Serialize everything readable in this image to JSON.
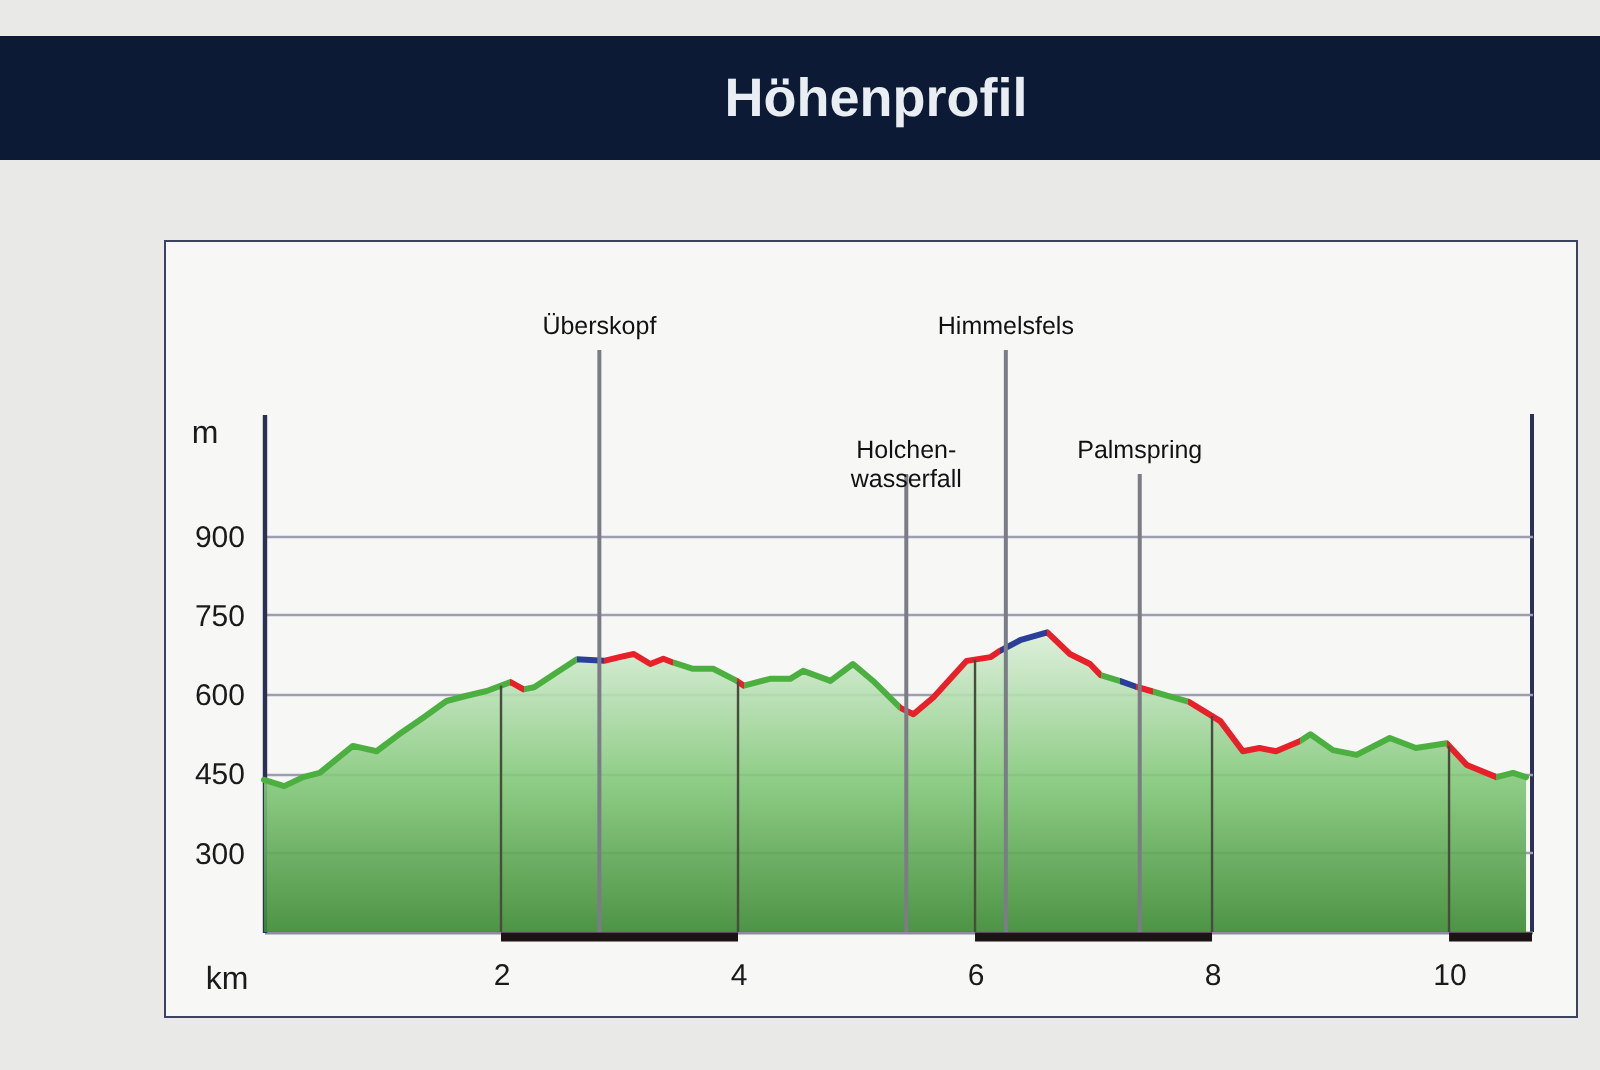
{
  "chart_data": {
    "type": "area",
    "title": "Höhenprofil",
    "xlabel": "km",
    "ylabel": "m",
    "x": [
      0,
      0.17,
      0.33,
      0.47,
      0.75,
      0.95,
      1.14,
      1.34,
      1.54,
      1.71,
      1.88,
      2.08,
      2.19,
      2.28,
      2.45,
      2.64,
      2.87,
      3.0,
      3.12,
      3.26,
      3.37,
      3.45,
      3.62,
      3.79,
      3.99,
      4.05,
      4.27,
      4.44,
      4.55,
      4.78,
      4.97,
      5.14,
      5.37,
      5.48,
      5.65,
      5.93,
      6.13,
      6.21,
      6.38,
      6.61,
      6.8,
      6.97,
      7.06,
      7.22,
      7.36,
      7.5,
      7.62,
      7.8,
      8.07,
      8.26,
      8.4,
      8.54,
      8.74,
      8.83,
      9.02,
      9.22,
      9.5,
      9.72,
      9.98,
      10.15,
      10.4,
      10.54,
      10.65
    ],
    "series": [
      {
        "color": "#4cb040",
        "values": [
          438,
          426,
          443,
          451,
          502,
          492,
          524,
          555,
          587,
          597,
          606,
          623,
          609,
          613,
          638,
          666,
          663,
          670,
          676,
          657,
          667,
          660,
          648,
          648,
          625,
          616,
          629,
          629,
          644,
          625,
          657,
          625,
          574,
          562,
          594,
          663,
          670,
          682,
          702,
          717,
          676,
          657,
          636,
          625,
          614,
          605,
          597,
          586,
          549,
          492,
          498,
          492,
          511,
          524,
          494,
          485,
          517,
          498,
          507,
          466,
          443,
          451,
          443
        ],
        "colors": [
          "#4cb040",
          "#4cb040",
          "#4cb040",
          "#4cb040",
          "#4cb040",
          "#4cb040",
          "#4cb040",
          "#4cb040",
          "#4cb040",
          "#4cb040",
          "#4cb040",
          "#e8202a",
          "#4cb040",
          "#4cb040",
          "#4cb040",
          "#2b3f99",
          "#e8202a",
          "#e8202a",
          "#e8202a",
          "#e8202a",
          "#e8202a",
          "#4cb040",
          "#4cb040",
          "#4cb040",
          "#e8202a",
          "#4cb040",
          "#4cb040",
          "#4cb040",
          "#4cb040",
          "#4cb040",
          "#4cb040",
          "#4cb040",
          "#e8202a",
          "#e8202a",
          "#e8202a",
          "#e8202a",
          "#e8202a",
          "#2b3f99",
          "#2b3f99",
          "#e8202a",
          "#e8202a",
          "#e8202a",
          "#4cb040",
          "#2b3f99",
          "#e8202a",
          "#4cb040",
          "#4cb040",
          "#e8202a",
          "#e8202a",
          "#e8202a",
          "#e8202a",
          "#e8202a",
          "#4cb040",
          "#4cb040",
          "#4cb040",
          "#4cb040",
          "#4cb040",
          "#4cb040",
          "#e8202a",
          "#e8202a",
          "#4cb040",
          "#4cb040",
          "#4cb040"
        ]
      }
    ],
    "xlim": [
      0,
      10.7
    ],
    "ylim": [
      150,
      1130
    ],
    "xticks": [
      2,
      4,
      6,
      8,
      10
    ],
    "yticks": [
      300,
      450,
      600,
      750,
      900
    ],
    "grid": "y",
    "ref_lines": [
      {
        "axis": "x",
        "value": 2.83,
        "label": "Überskopf"
      },
      {
        "axis": "x",
        "value": 5.42,
        "label": "Holchen-\nwasserfall"
      },
      {
        "axis": "x",
        "value": 6.26,
        "label": "Himmelsfels"
      },
      {
        "axis": "x",
        "value": 7.39,
        "label": "Palmspring"
      }
    ]
  }
}
